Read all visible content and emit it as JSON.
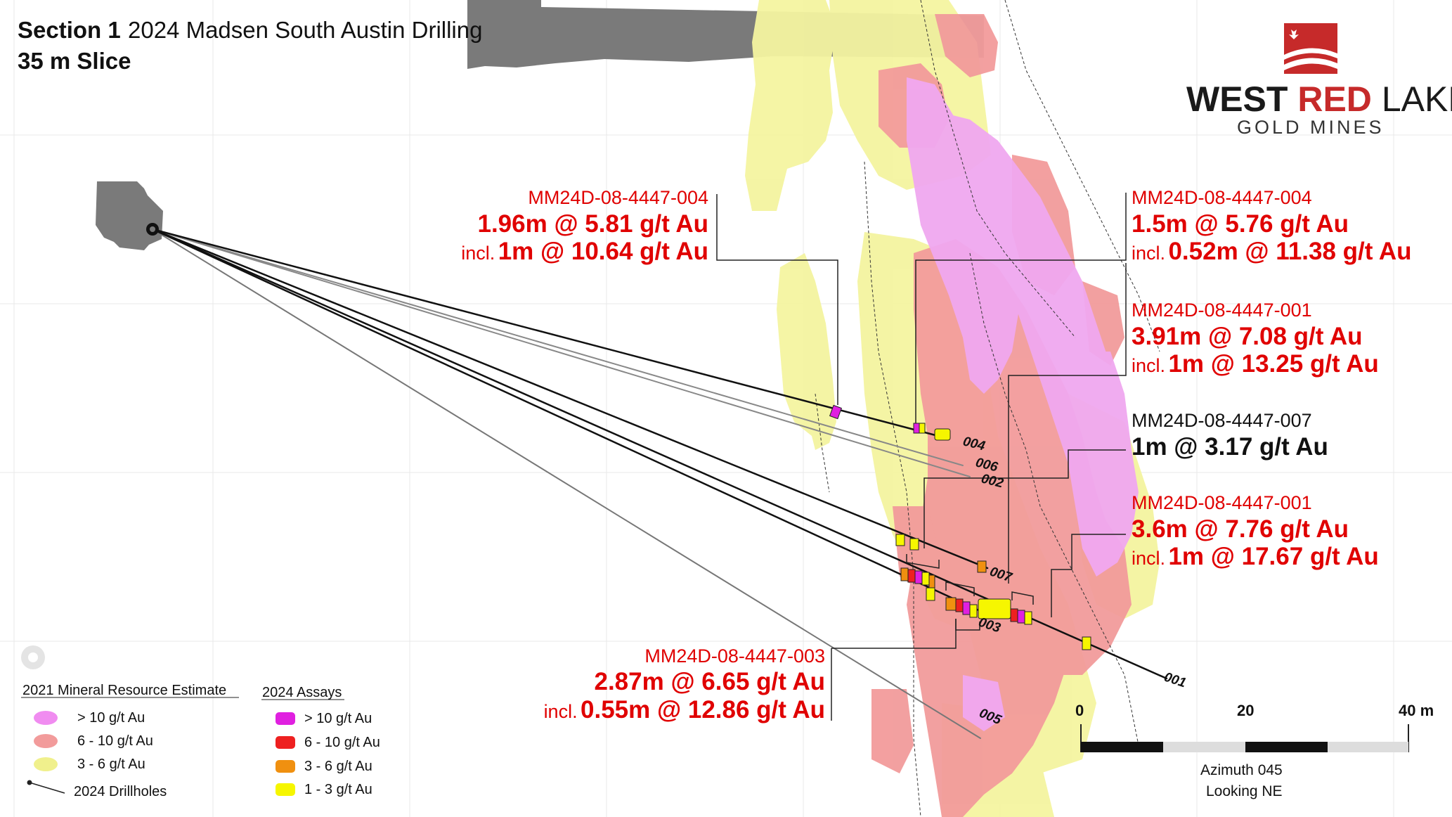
{
  "title": {
    "section_bold": "Section 1",
    "section_rest": "2024 Madsen South Austin Drilling",
    "slice": "35 m Slice"
  },
  "logo": {
    "line1_a": "WEST",
    "line1_b": "RED",
    "line1_c": "LAKE",
    "line2": "GOLD MINES",
    "icon": "maple-leaf-waves-icon"
  },
  "callouts": [
    {
      "hole": "MM24D-08-4447-004",
      "main": "1.96m @ 5.81 g/t Au",
      "incl_word": "incl.",
      "incl": "1m @ 10.64 g/t Au",
      "color": "red"
    },
    {
      "hole": "MM24D-08-4447-004",
      "main": "1.5m @ 5.76 g/t Au",
      "incl_word": "incl.",
      "incl": "0.52m @ 11.38 g/t Au",
      "color": "red"
    },
    {
      "hole": "MM24D-08-4447-001",
      "main": "3.91m @ 7.08 g/t Au",
      "incl_word": "incl.",
      "incl": "1m @ 13.25 g/t Au",
      "color": "red"
    },
    {
      "hole": "MM24D-08-4447-007",
      "main": "1m @ 3.17 g/t Au",
      "color": "black"
    },
    {
      "hole": "MM24D-08-4447-001",
      "main": "3.6m @ 7.76 g/t Au",
      "incl_word": "incl.",
      "incl": "1m @ 17.67 g/t Au",
      "color": "red"
    },
    {
      "hole": "MM24D-08-4447-003",
      "main": "2.87m @ 6.65 g/t Au",
      "incl_word": "incl.",
      "incl": "0.55m @ 12.86 g/t Au",
      "color": "red"
    }
  ],
  "drillholes": [
    {
      "label": "004"
    },
    {
      "label": "006"
    },
    {
      "label": "002"
    },
    {
      "label": "007"
    },
    {
      "label": "003"
    },
    {
      "label": "001"
    },
    {
      "label": "005"
    }
  ],
  "legend": {
    "mre_title": "2021 Mineral Resource Estimate",
    "mre_items": [
      {
        "label": "> 10 g/t Au",
        "color": "#f08cf0"
      },
      {
        "label": "6 - 10 g/t Au",
        "color": "#f29b9b"
      },
      {
        "label": "3 - 6 g/t Au",
        "color": "#f0f08c"
      }
    ],
    "drillholes_label": "2024 Drillholes",
    "assays_title": "2024 Assays",
    "assay_items": [
      {
        "label": "> 10 g/t Au",
        "color": "#e020e0"
      },
      {
        "label": "6 - 10 g/t Au",
        "color": "#ee2020"
      },
      {
        "label": "3 - 6 g/t Au",
        "color": "#f09010"
      },
      {
        "label": "1 - 3 g/t Au",
        "color": "#f6f600"
      }
    ]
  },
  "scale": {
    "ticks": [
      "0",
      "20",
      "40 m"
    ],
    "caption1": "Azimuth 045",
    "caption2": "Looking NE"
  },
  "colors": {
    "pink": "#f29b9b",
    "magenta_zone": "#f0a8f0",
    "yellow_zone": "#f4f4a0",
    "workings": "#7a7a7a",
    "highlight_red": "#e00000"
  }
}
